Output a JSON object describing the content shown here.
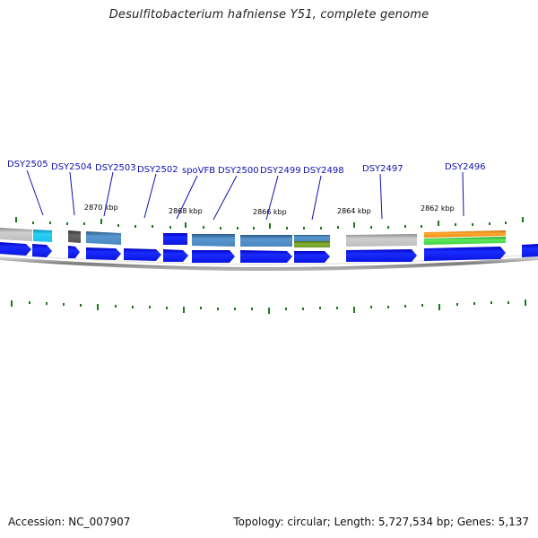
{
  "title": "Desulfitobacterium hafniense Y51, complete genome",
  "footer": {
    "accession": "Accession: NC_007907",
    "summary": "Topology: circular; Length: 5,727,534 bp; Genes: 5,137"
  },
  "position_labels": [
    "2870 kbp",
    "2868 kbp",
    "2866 kbp",
    "2864 kbp",
    "2862 kbp"
  ],
  "gene_labels": [
    "DSY2505",
    "DSY2504",
    "DSY2503",
    "DSY2502",
    "spoVFB",
    "DSY2500",
    "DSY2499",
    "DSY2498",
    "DSY2497",
    "DSY2496"
  ],
  "colors": {
    "gene_arrow": "#0a14f0",
    "label_text": "#1010b0",
    "tick": "#1a7a1a",
    "backbone": "#888888",
    "feature_cyan": "#19c3ea",
    "feature_grey": "#c8c8c8",
    "feature_dark": "#555555",
    "feature_steelblue": "#4a86bf",
    "feature_olive": "#6f9a2a",
    "feature_orange": "#f28a0e",
    "feature_green": "#3ecf3e"
  }
}
